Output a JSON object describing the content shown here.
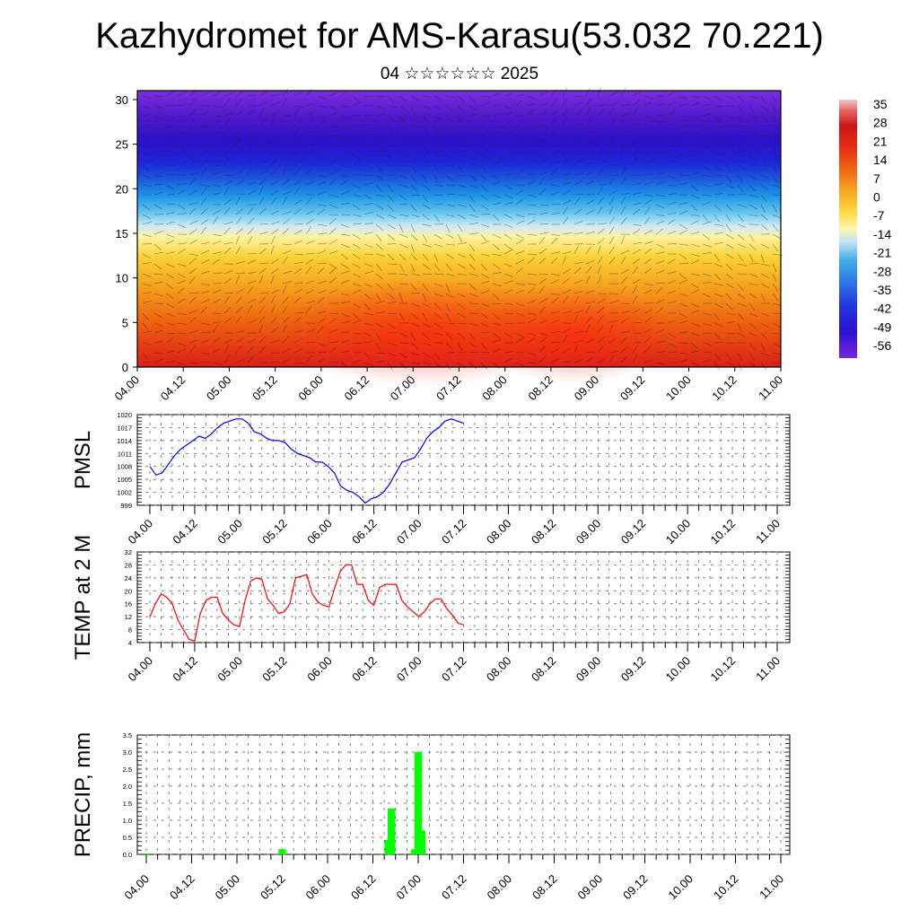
{
  "title": "Kazhydromet for AMS-Karasu(53.032 70.221)",
  "subtitle": "04 ☆☆☆☆☆☆ 2025",
  "chart_data": [
    {
      "type": "heatmap",
      "ylim": [
        0,
        31
      ],
      "y_ticks": [
        "0",
        "5",
        "10",
        "15",
        "20",
        "25",
        "30"
      ],
      "x_ticks": [
        "04.00",
        "04.12",
        "05.00",
        "05.12",
        "06.00",
        "06.12",
        "07.00",
        "07.12",
        "08.00",
        "08.12",
        "09.00",
        "09.12",
        "10.00",
        "10.12",
        "11.00"
      ],
      "colorbar_labels": [
        "35",
        "28",
        "21",
        "14",
        "7",
        "0",
        "-7",
        "-14",
        "-21",
        "-28",
        "-35",
        "-42",
        "-49",
        "-56"
      ]
    },
    {
      "type": "line",
      "ylabel": "PMSL",
      "ylim": [
        999,
        1020
      ],
      "y_ticks": [
        "999",
        "1002",
        "1005",
        "1008",
        "1011",
        "1014",
        "1017",
        "1020"
      ],
      "x_ticks": [
        "04.00",
        "04.12",
        "05.00",
        "05.12",
        "06.00",
        "06.12",
        "07.00",
        "07.12",
        "08.00",
        "08.12",
        "09.00",
        "09.12",
        "10.00",
        "10.12",
        "11.00"
      ],
      "color": "#0000ff",
      "values": [
        1008,
        1006,
        1006.5,
        1008.5,
        1010.5,
        1012,
        1013,
        1014,
        1015,
        1014.5,
        1015.5,
        1017,
        1018,
        1018.5,
        1019,
        1019,
        1018,
        1016,
        1015.5,
        1014.5,
        1014,
        1014,
        1013.5,
        1012,
        1011,
        1010.5,
        1010,
        1009,
        1009,
        1008,
        1006.5,
        1003.5,
        1002.5,
        1002,
        1001,
        999.5,
        1000.5,
        1001,
        1002,
        1004,
        1006.5,
        1009,
        1009.5,
        1010,
        1012,
        1014.5,
        1016,
        1017,
        1018.5,
        1019,
        1018.5,
        1018
      ]
    },
    {
      "type": "line",
      "ylabel": "TEMP at 2 M",
      "ylim": [
        4,
        32
      ],
      "y_ticks": [
        "4",
        "8",
        "12",
        "16",
        "20",
        "24",
        "28",
        "32"
      ],
      "x_ticks": [
        "04.00",
        "04.12",
        "05.00",
        "05.12",
        "06.00",
        "06.12",
        "07.00",
        "07.12",
        "08.00",
        "08.12",
        "09.00",
        "09.12",
        "10.00",
        "10.12",
        "11.00"
      ],
      "color": "#ff0000",
      "values": [
        12,
        16,
        19,
        18,
        16,
        11,
        8,
        5,
        4.5,
        13,
        17,
        18,
        18,
        13,
        11,
        9.5,
        9,
        17,
        23,
        24,
        23.5,
        17.5,
        15.5,
        13,
        13.5,
        16,
        24,
        24.5,
        25,
        19,
        16.5,
        15.5,
        15,
        21,
        26,
        28,
        28,
        22,
        22,
        17,
        15.5,
        21,
        22,
        22,
        22,
        17,
        15,
        13.5,
        12,
        13.5,
        16,
        17.5,
        17.5,
        14.5,
        12.5,
        10,
        9.5
      ]
    },
    {
      "type": "bar",
      "ylabel": "PRECIP, mm",
      "ylim": [
        0,
        3.5
      ],
      "y_ticks": [
        "0.0",
        "0.5",
        "1.0",
        "1.5",
        "2.0",
        "2.5",
        "3.0",
        "3.5"
      ],
      "x_ticks": [
        "04.00",
        "04.12",
        "05.00",
        "05.12",
        "06.00",
        "06.12",
        "07.00",
        "07.12",
        "08.00",
        "08.12",
        "09.00",
        "09.12",
        "10.00",
        "10.12",
        "11.00"
      ],
      "color": "#00ff00",
      "bars": [
        {
          "x": 0.03,
          "value": 0.03
        },
        {
          "x": 3.0,
          "value": 0.15
        },
        {
          "x": 5.34,
          "value": 0.42
        },
        {
          "x": 5.41,
          "value": 1.35
        },
        {
          "x": 5.92,
          "value": 0.15
        },
        {
          "x": 6.0,
          "value": 3.0
        },
        {
          "x": 6.08,
          "value": 0.7
        }
      ]
    }
  ]
}
